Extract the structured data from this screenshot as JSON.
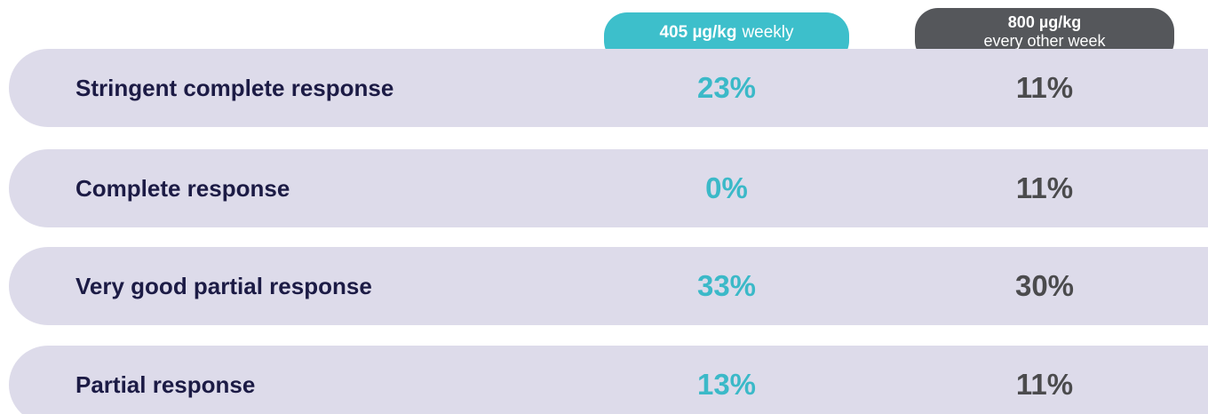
{
  "table": {
    "columns": [
      {
        "dose": "405 µg/kg",
        "schedule": "weekly"
      },
      {
        "dose": "800 µg/kg",
        "schedule": "every other week"
      }
    ],
    "rows": [
      [
        "Stringent complete response",
        "23%",
        "11%"
      ],
      [
        "Complete response",
        "0%",
        "11%"
      ],
      [
        "Very good partial response",
        "33%",
        "30%"
      ],
      [
        "Partial response",
        "13%",
        "11%"
      ]
    ]
  }
}
